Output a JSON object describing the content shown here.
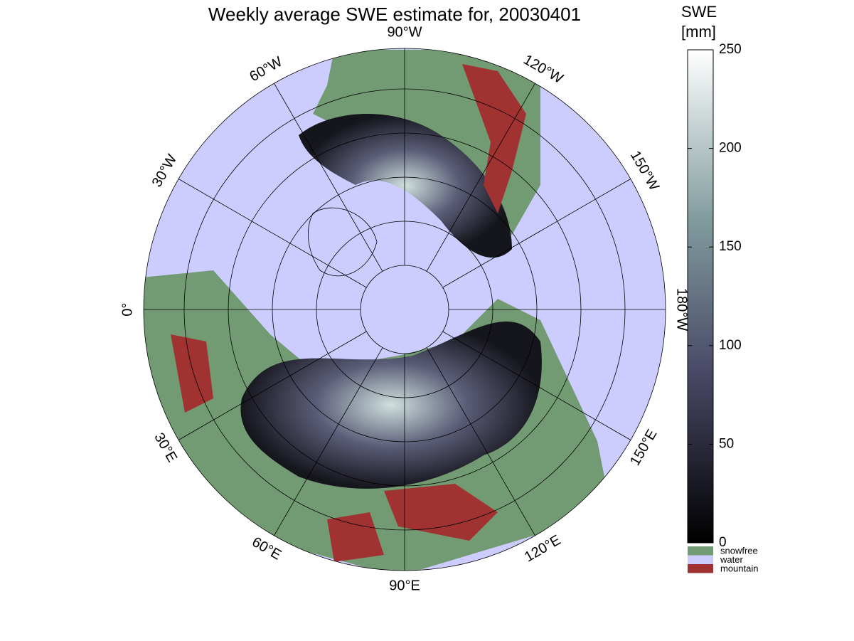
{
  "title": "Weekly average SWE estimate for, 20030401",
  "meridian_labels": [
    "0°",
    "30°E",
    "60°E",
    "90°E",
    "120°E",
    "150°E",
    "180°W",
    "150°W",
    "120°W",
    "90°W",
    "60°W",
    "30°W"
  ],
  "colorbar": {
    "label": [
      "SWE",
      "[mm]"
    ],
    "lim": [
      0,
      250
    ],
    "ticks": [
      0,
      50,
      100,
      150,
      200,
      250
    ]
  },
  "legend": [
    {
      "name": "snowfree",
      "color": "#739b73"
    },
    {
      "name": "water",
      "color": "#ccccff"
    },
    {
      "name": "mountain",
      "color": "#a03232"
    }
  ]
}
